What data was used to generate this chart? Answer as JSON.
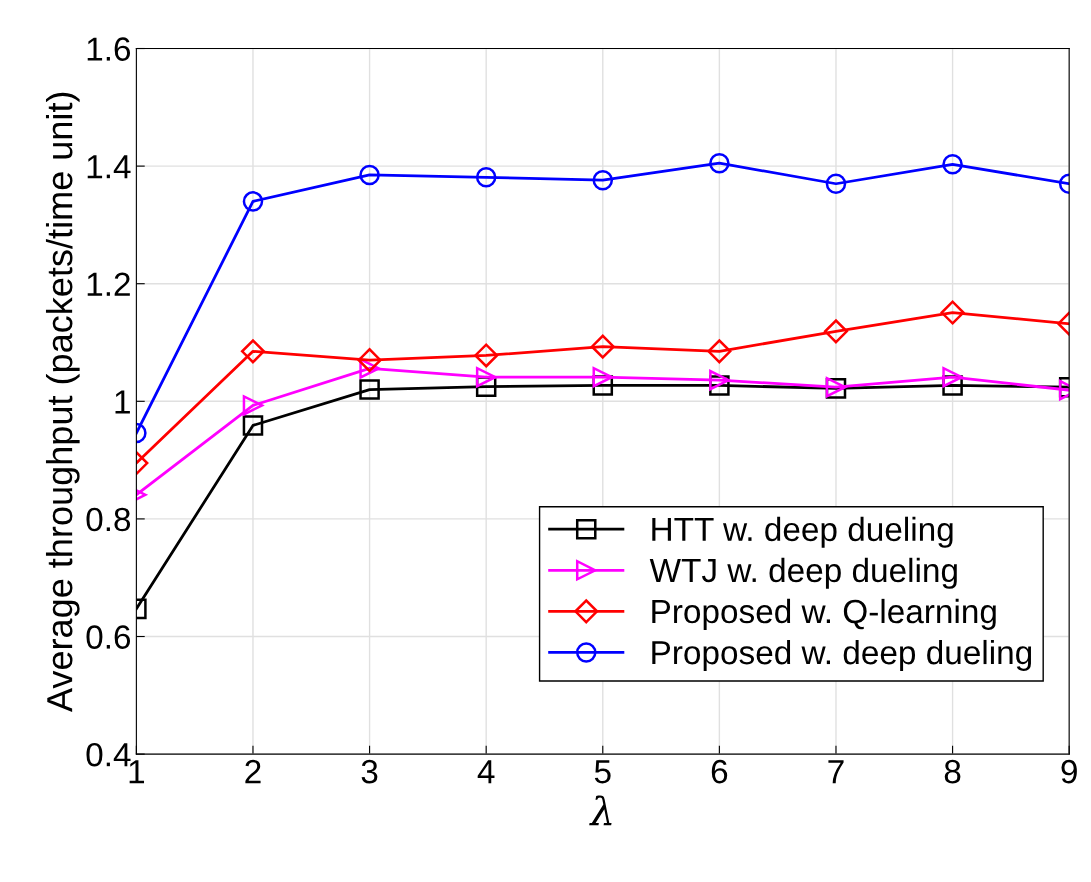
{
  "chart_data": {
    "type": "line",
    "xlabel": "λ",
    "ylabel": "Average throughput (packets/time unit)",
    "x": [
      1,
      2,
      3,
      4,
      5,
      6,
      7,
      8,
      9
    ],
    "series": [
      {
        "name": "HTT w. deep dueling",
        "color": "#000000",
        "marker": "square",
        "values": [
          0.647,
          0.959,
          1.02,
          1.025,
          1.027,
          1.027,
          1.022,
          1.027,
          1.024
        ]
      },
      {
        "name": "WTJ w. deep dueling",
        "color": "#ff00ff",
        "marker": "triangle",
        "values": [
          0.841,
          0.993,
          1.056,
          1.041,
          1.041,
          1.036,
          1.024,
          1.041,
          1.019
        ]
      },
      {
        "name": "Proposed w. Q-learning",
        "color": "#ff0000",
        "marker": "diamond",
        "values": [
          0.895,
          1.085,
          1.07,
          1.078,
          1.093,
          1.085,
          1.119,
          1.151,
          1.132
        ]
      },
      {
        "name": "Proposed w. deep dueling",
        "color": "#0000ff",
        "marker": "circle",
        "values": [
          0.946,
          1.34,
          1.385,
          1.381,
          1.376,
          1.405,
          1.37,
          1.403,
          1.37
        ]
      }
    ],
    "xlim": [
      1,
      9
    ],
    "xticks": [
      1,
      2,
      3,
      4,
      5,
      6,
      7,
      8,
      9
    ],
    "ylim": [
      0.4,
      1.6
    ],
    "yticks": [
      0.4,
      0.6,
      0.8,
      1,
      1.2,
      1.4,
      1.6
    ],
    "grid": true,
    "legend": "bottom right",
    "line_style": "solid"
  }
}
